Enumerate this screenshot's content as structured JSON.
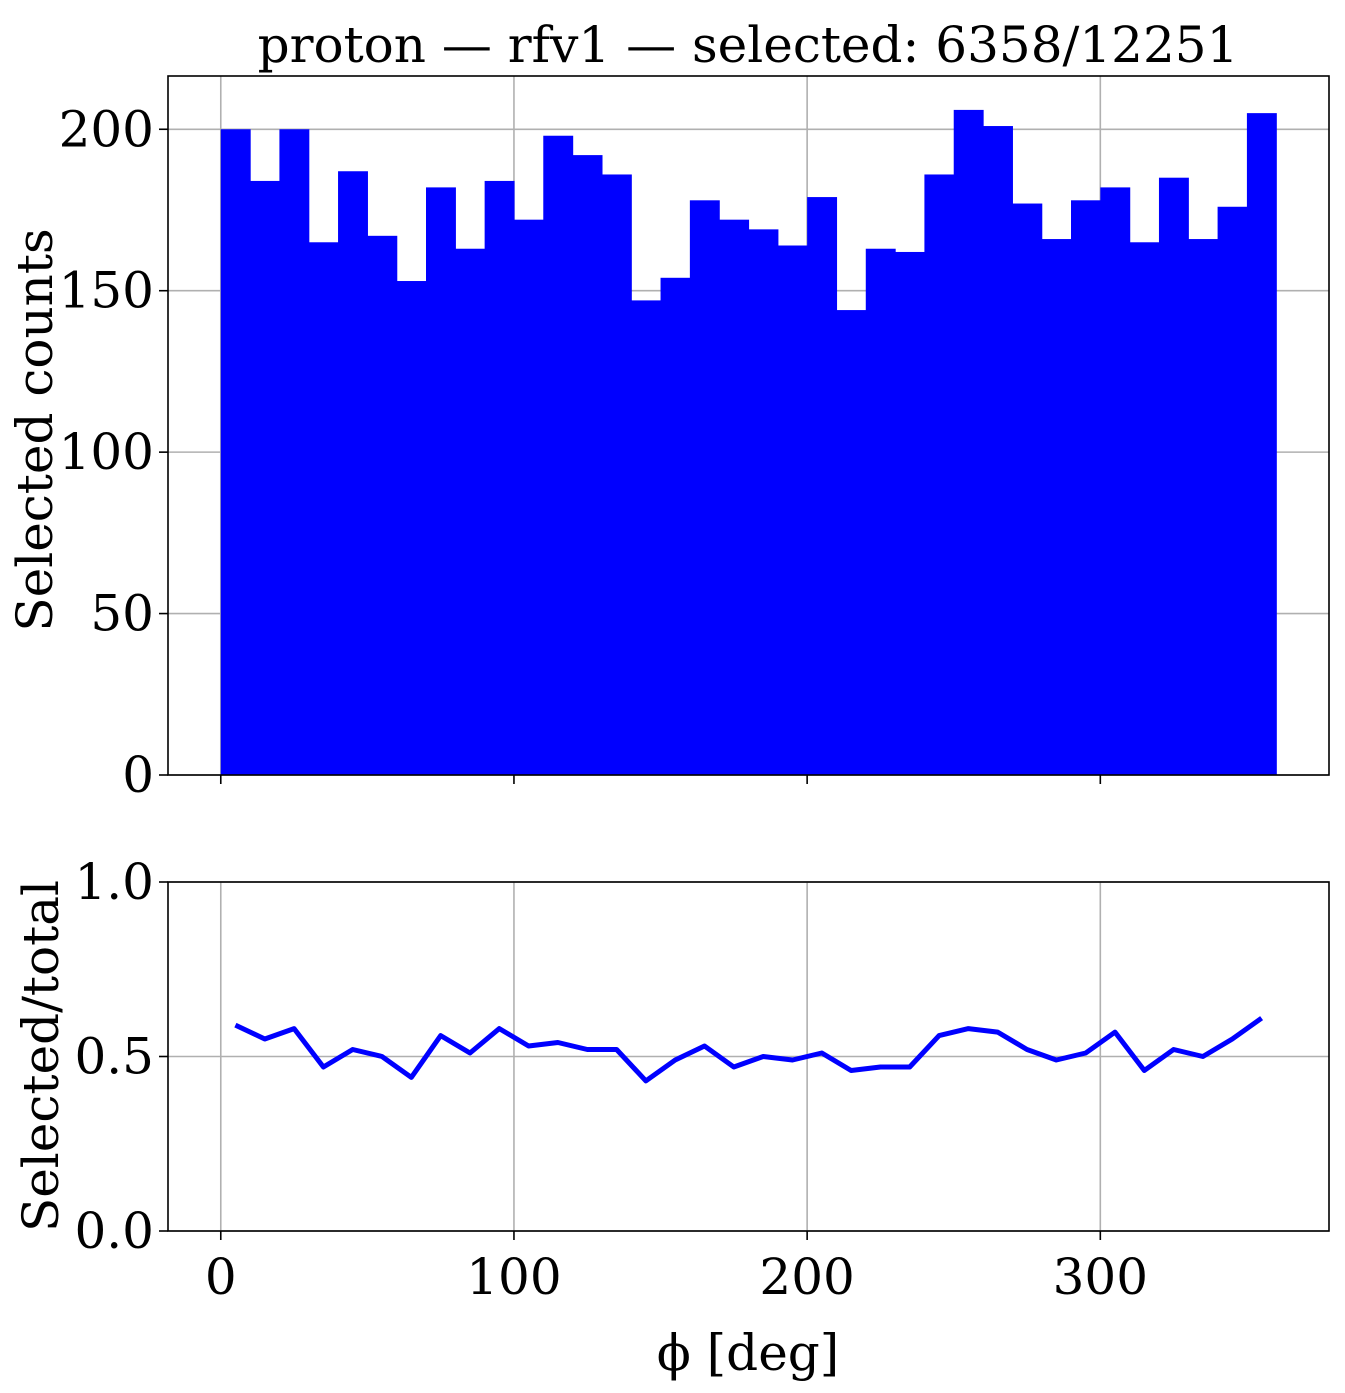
{
  "chart_data": [
    {
      "type": "bar",
      "title": "proton — rfv1 — selected: 6358/12251",
      "ylabel": "Selected counts",
      "xlim": [
        -18,
        378
      ],
      "ylim": [
        0,
        216.5
      ],
      "grid": true,
      "bar_color": "#0000ff",
      "bin_edges": [
        0,
        10,
        20,
        30,
        40,
        50,
        60,
        70,
        80,
        90,
        100,
        110,
        120,
        130,
        140,
        150,
        160,
        170,
        180,
        190,
        200,
        210,
        220,
        230,
        240,
        250,
        260,
        270,
        280,
        290,
        300,
        310,
        320,
        330,
        340,
        350,
        360
      ],
      "values": [
        200,
        184,
        200,
        165,
        187,
        167,
        153,
        182,
        163,
        184,
        172,
        198,
        192,
        186,
        147,
        154,
        178,
        172,
        169,
        164,
        179,
        144,
        163,
        162,
        186,
        206,
        201,
        177,
        166,
        178,
        182,
        165,
        185,
        166,
        176,
        205
      ],
      "x_ticks": [
        0,
        100,
        200,
        300
      ],
      "y_ticks": [
        0,
        50,
        100,
        150,
        200
      ],
      "y_tick_labels": [
        "0",
        "50",
        "100",
        "150",
        "200"
      ]
    },
    {
      "type": "line",
      "ylabel": "Selected/total",
      "xlabel": "ϕ [deg]",
      "xlim": [
        -18,
        378
      ],
      "ylim": [
        0,
        1
      ],
      "grid": true,
      "line_color": "#0000ff",
      "x": [
        5,
        15,
        25,
        35,
        45,
        55,
        65,
        75,
        85,
        95,
        105,
        115,
        125,
        135,
        145,
        155,
        165,
        175,
        185,
        195,
        205,
        215,
        225,
        235,
        245,
        255,
        265,
        275,
        285,
        295,
        305,
        315,
        325,
        335,
        345,
        355
      ],
      "y": [
        0.59,
        0.55,
        0.58,
        0.47,
        0.52,
        0.5,
        0.44,
        0.56,
        0.51,
        0.58,
        0.53,
        0.54,
        0.52,
        0.52,
        0.43,
        0.49,
        0.53,
        0.47,
        0.5,
        0.49,
        0.51,
        0.46,
        0.47,
        0.47,
        0.56,
        0.58,
        0.57,
        0.52,
        0.49,
        0.51,
        0.57,
        0.46,
        0.52,
        0.5,
        0.55,
        0.61
      ],
      "x_ticks": [
        0,
        100,
        200,
        300
      ],
      "x_tick_labels": [
        "0",
        "100",
        "200",
        "300"
      ],
      "y_ticks": [
        0,
        0.5,
        1
      ],
      "y_tick_labels": [
        "0.0",
        "0.5",
        "1.0"
      ]
    }
  ]
}
